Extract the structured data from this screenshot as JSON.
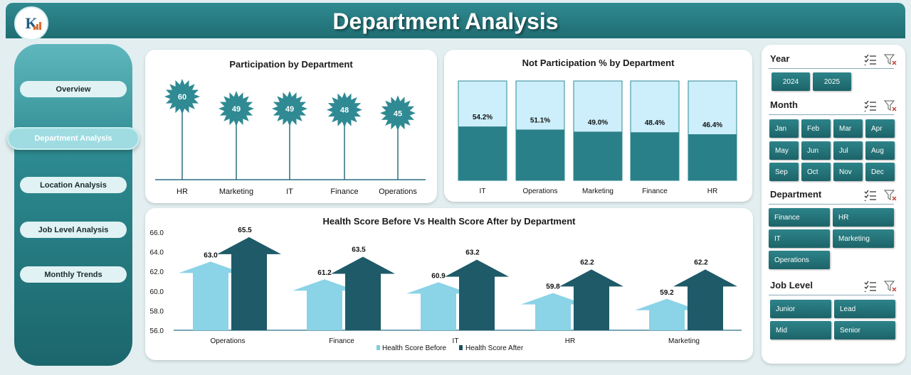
{
  "header": {
    "title": "Department Analysis",
    "logo_text": "K"
  },
  "sidebar": {
    "items": [
      {
        "label": "Overview"
      },
      {
        "label": "Department Analysis"
      },
      {
        "label": "Location Analysis"
      },
      {
        "label": "Job Level Analysis"
      },
      {
        "label": "Monthly Trends"
      }
    ]
  },
  "colors": {
    "teal_dark": "#1f6d73",
    "teal": "#2d8489",
    "before_series": "#7fcfe3",
    "after_series": "#1a5060",
    "bar_bg": "#cdeefb"
  },
  "filters": {
    "year": {
      "label": "Year",
      "options": [
        "2024",
        "2025"
      ]
    },
    "month": {
      "label": "Month",
      "options": [
        "Jan",
        "Feb",
        "Mar",
        "Apr",
        "May",
        "Jun",
        "Jul",
        "Aug",
        "Sep",
        "Oct",
        "Nov",
        "Dec"
      ]
    },
    "department": {
      "label": "Department",
      "options": [
        "Finance",
        "HR",
        "IT",
        "Marketing",
        "Operations"
      ]
    },
    "job_level": {
      "label": "Job Level",
      "options": [
        "Junior",
        "Lead",
        "Mid",
        "Senior"
      ]
    },
    "icons": [
      "multi-select-icon",
      "clear-filter-icon"
    ]
  },
  "chart_data": [
    {
      "type": "bar",
      "style": "lollipop",
      "title": "Participation by Department",
      "categories": [
        "HR",
        "Marketing",
        "IT",
        "Finance",
        "Operations"
      ],
      "values": [
        60,
        49,
        49,
        48,
        45
      ]
    },
    {
      "type": "bar",
      "title": "Not Participation % by Department",
      "categories": [
        "IT",
        "Operations",
        "Marketing",
        "Finance",
        "HR"
      ],
      "values": [
        54.2,
        51.1,
        49.0,
        48.4,
        46.4
      ],
      "labels": [
        "54.2%",
        "51.1%",
        "49.0%",
        "48.4%",
        "46.4%"
      ],
      "ylim": [
        0,
        100
      ]
    },
    {
      "type": "bar",
      "style": "arrows",
      "title": "Health Score Before Vs Health Score After by Department",
      "categories": [
        "Operations",
        "Finance",
        "IT",
        "HR",
        "Marketing"
      ],
      "series": [
        {
          "name": "Health Score Before",
          "values": [
            63.0,
            61.2,
            60.9,
            59.8,
            59.2
          ],
          "labels": [
            "63.0",
            "61.2",
            "60.9",
            "59.8",
            "59.2"
          ]
        },
        {
          "name": "Health Score After",
          "values": [
            65.5,
            63.5,
            63.2,
            62.2,
            62.2
          ],
          "labels": [
            "65.5",
            "63.5",
            "63.2",
            "62.2",
            "62.2"
          ]
        }
      ],
      "ylim": [
        56,
        66
      ],
      "yticks": [
        "56.0",
        "58.0",
        "60.0",
        "62.0",
        "64.0",
        "66.0"
      ],
      "legend": "bottom"
    }
  ]
}
